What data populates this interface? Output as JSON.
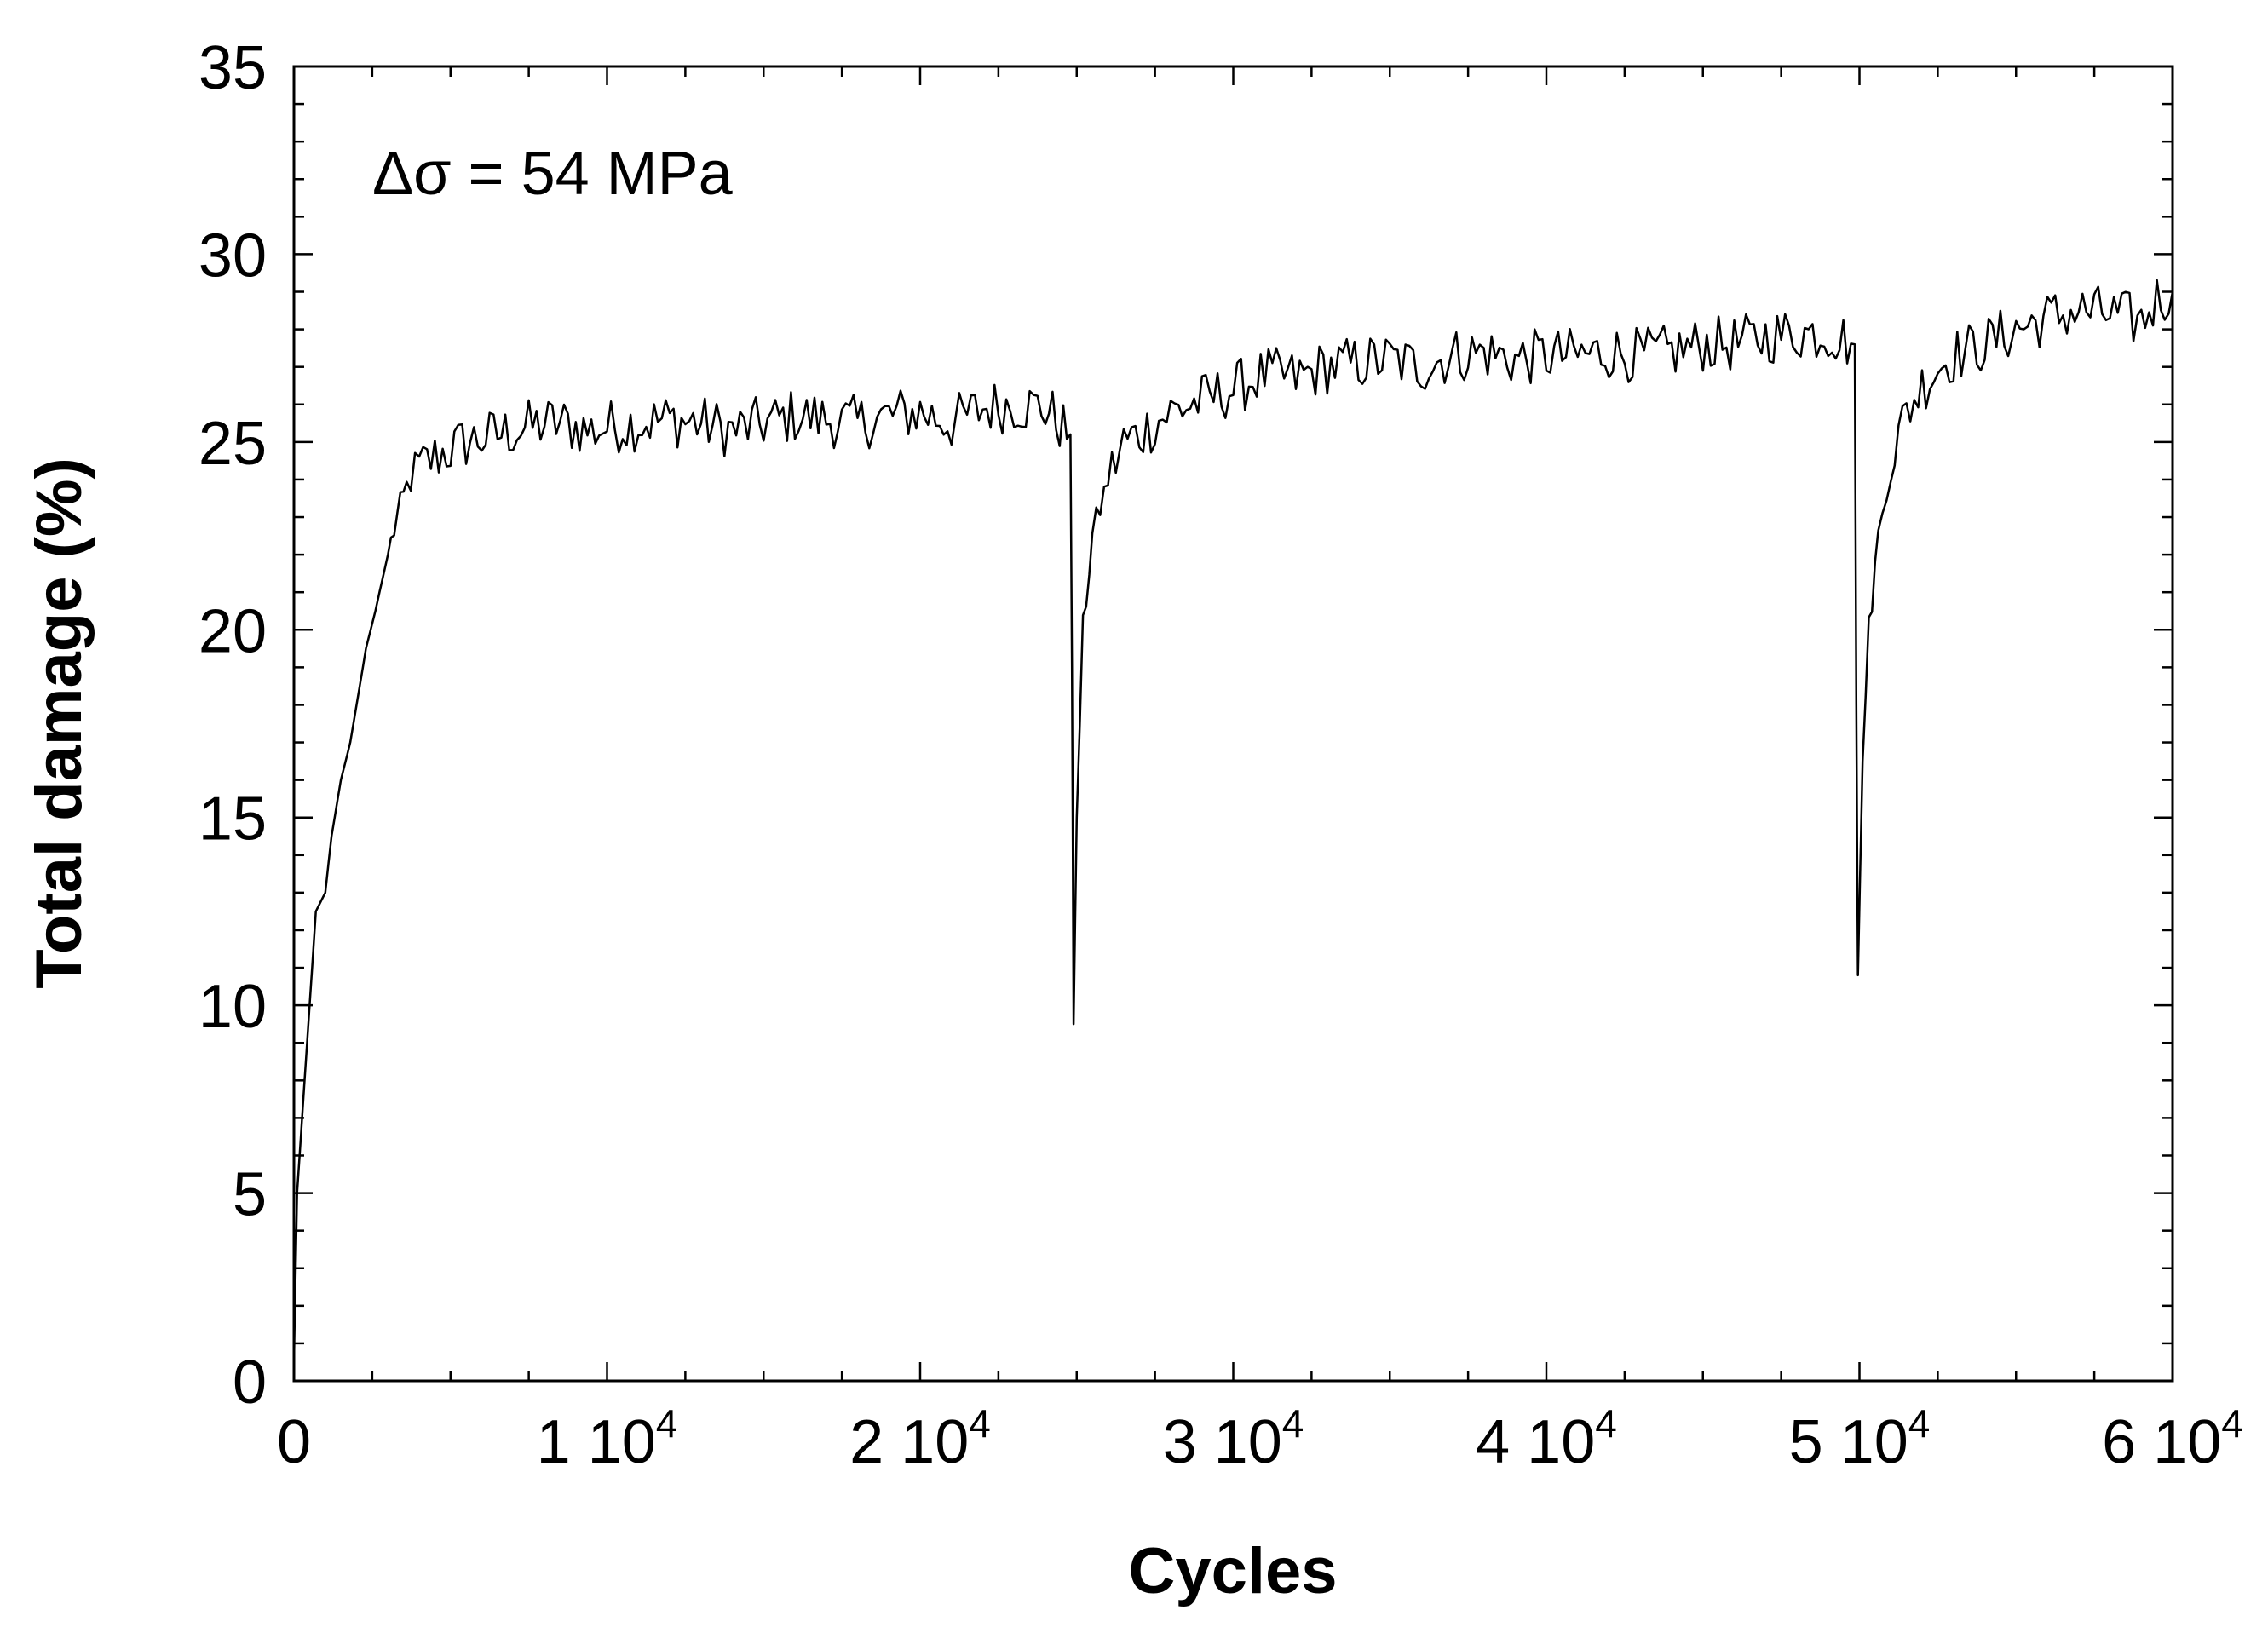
{
  "chart_data": {
    "type": "line",
    "title": "",
    "xlabel": "Cycles",
    "ylabel": "Total damage (%)",
    "xlim": [
      0,
      60000
    ],
    "ylim": [
      0,
      35
    ],
    "grid": false,
    "annotation": "Δσ = 54 MPa",
    "x_tick_labels": [
      {
        "value": 0,
        "mantissa": "0",
        "exponent": ""
      },
      {
        "value": 10000,
        "mantissa": "1 10",
        "exponent": "4"
      },
      {
        "value": 20000,
        "mantissa": "2 10",
        "exponent": "4"
      },
      {
        "value": 30000,
        "mantissa": "3 10",
        "exponent": "4"
      },
      {
        "value": 40000,
        "mantissa": "4 10",
        "exponent": "4"
      },
      {
        "value": 50000,
        "mantissa": "5 10",
        "exponent": "4"
      },
      {
        "value": 60000,
        "mantissa": "6 10",
        "exponent": "4"
      }
    ],
    "y_tick_labels": [
      "0",
      "5",
      "10",
      "15",
      "20",
      "25",
      "30",
      "35"
    ],
    "series": [
      {
        "name": "Total damage",
        "color": "#000000",
        "x": [
          0,
          100,
          300,
          500,
          700,
          1000,
          1200,
          1500,
          1800,
          2000,
          2300,
          2600,
          3000,
          3300,
          3600,
          4000,
          4500,
          5000,
          5500,
          6000,
          6500,
          7000,
          7500,
          8000,
          8500,
          9000,
          9500,
          10000,
          11000,
          12000,
          13000,
          14000,
          15000,
          16000,
          17000,
          18000,
          19000,
          20000,
          21000,
          22000,
          23000,
          24000,
          24800,
          24850,
          24900,
          25000,
          25200,
          25500,
          26000,
          26500,
          27000,
          27500,
          28000,
          29000,
          30000,
          31000,
          32000,
          33000,
          34000,
          35000,
          36000,
          37000,
          38000,
          39000,
          40000,
          41000,
          42000,
          43000,
          44000,
          45000,
          46000,
          47000,
          48000,
          49000,
          49850,
          49900,
          49950,
          50100,
          50300,
          50600,
          51000,
          51500,
          52000,
          52500,
          53000,
          54000,
          55000,
          56000,
          57000,
          58000,
          59000,
          59500,
          60000
        ],
        "values": [
          0.5,
          5,
          7.5,
          10,
          12.5,
          13,
          14.5,
          16,
          17,
          18,
          19.5,
          20.5,
          22,
          23,
          23.8,
          24.3,
          24.6,
          24.8,
          25,
          25.1,
          25.2,
          25.3,
          25.4,
          25.5,
          25.5,
          25.4,
          25.3,
          25.4,
          25.5,
          25.6,
          25.5,
          25.3,
          25.5,
          25.7,
          25.6,
          25.5,
          25.7,
          25.8,
          25.5,
          25.9,
          26,
          25.9,
          25.2,
          19,
          9.5,
          15,
          20,
          22.5,
          24,
          25,
          25.2,
          25.5,
          25.8,
          26.1,
          26.4,
          26.8,
          26.7,
          27,
          27.1,
          27.2,
          27,
          27.3,
          27.4,
          27.2,
          27.3,
          27.3,
          27.4,
          27.3,
          27.4,
          27.6,
          27.6,
          27.8,
          27.9,
          27.9,
          27.6,
          18,
          10.8,
          16.5,
          20,
          22.5,
          24.5,
          25.8,
          26.5,
          27,
          27.3,
          27.6,
          28,
          28.3,
          28.5,
          28.4,
          28.2,
          28.8,
          29
        ]
      }
    ]
  }
}
